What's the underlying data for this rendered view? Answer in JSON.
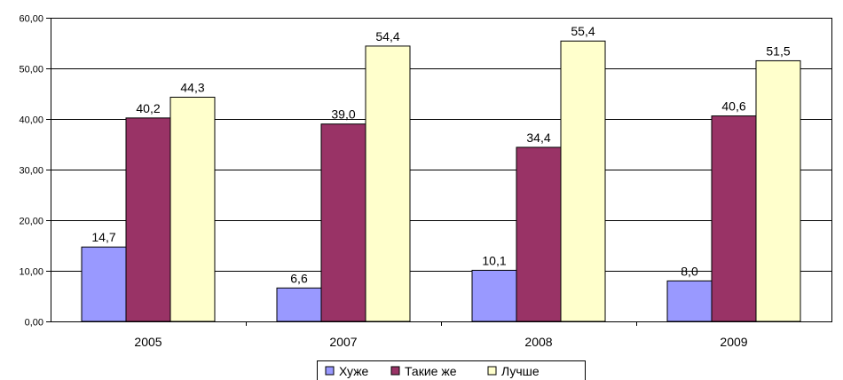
{
  "chart_data": {
    "type": "bar",
    "categories": [
      "2005",
      "2007",
      "2008",
      "2009"
    ],
    "series": [
      {
        "name": "Хуже",
        "values": [
          14.7,
          6.6,
          10.1,
          8.0
        ],
        "labels": [
          "14,7",
          "6,6",
          "10,1",
          "8,0"
        ],
        "color": "#9999ff"
      },
      {
        "name": "Такие же",
        "values": [
          40.2,
          39.0,
          34.4,
          40.6
        ],
        "labels": [
          "40,2",
          "39,0",
          "34,4",
          "40,6"
        ],
        "color": "#993366"
      },
      {
        "name": "Лучше",
        "values": [
          44.3,
          54.4,
          55.4,
          51.5
        ],
        "labels": [
          "44,3",
          "54,4",
          "55,4",
          "51,5"
        ],
        "color": "#ffffcc"
      }
    ],
    "ylim": [
      0,
      60
    ],
    "yticks": [
      0,
      10,
      20,
      30,
      40,
      50,
      60
    ],
    "ytick_labels": [
      "0,00",
      "10,00",
      "20,00",
      "30,00",
      "40,00",
      "50,00",
      "60,00"
    ],
    "grid": true,
    "legend_position": "bottom",
    "title": "",
    "xlabel": "",
    "ylabel": ""
  }
}
